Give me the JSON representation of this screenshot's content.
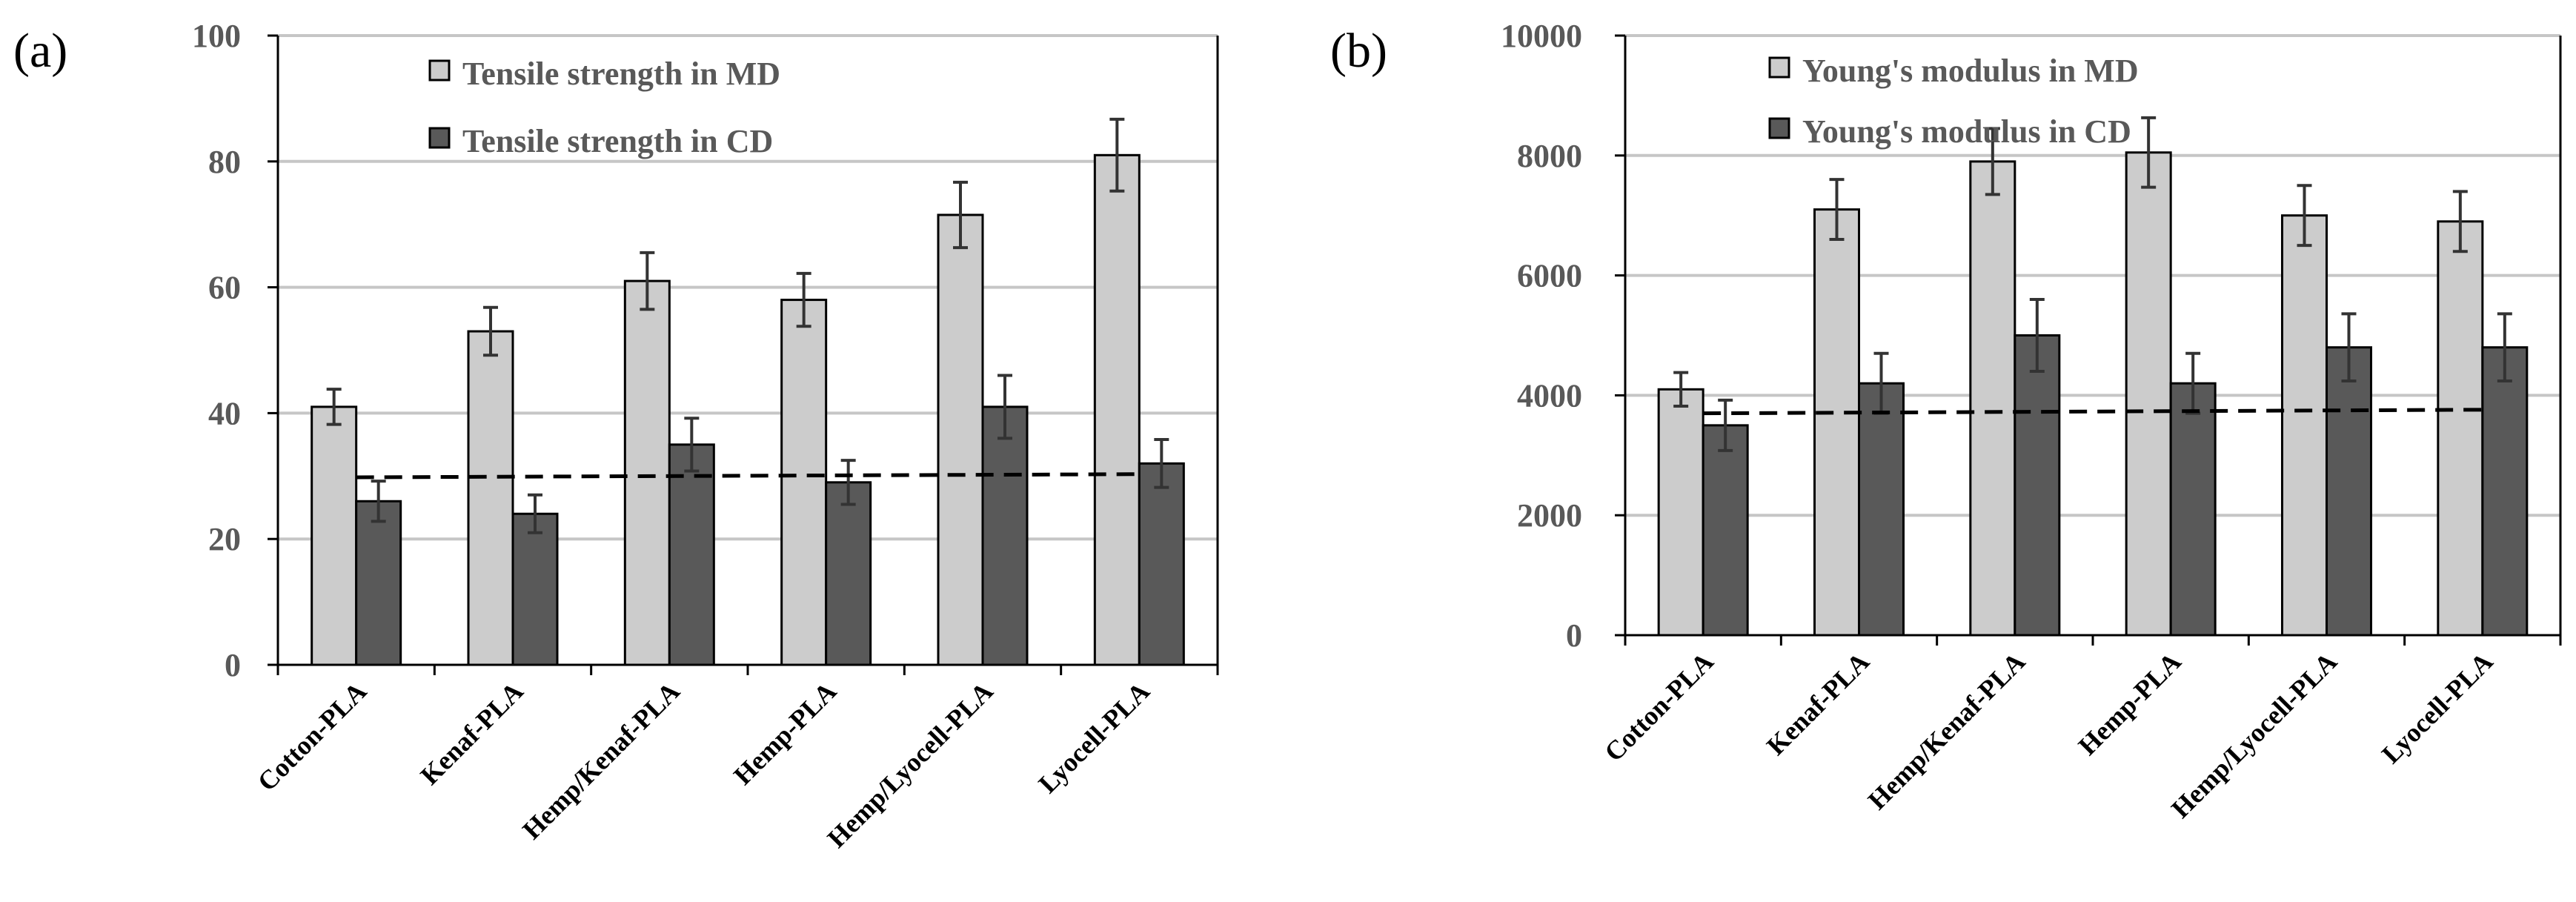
{
  "chart_data": [
    {
      "panel_label": "(a)",
      "type": "bar",
      "categories": [
        "Cotton-PLA",
        "Kenaf-PLA",
        "Hemp/Kenaf-PLA",
        "Hemp-PLA",
        "Hemp/Lyocell-PLA",
        "Lyocell-PLA"
      ],
      "series": [
        {
          "name": "Tensile strength in MD",
          "color": "#cccccc",
          "values": [
            41,
            53,
            61,
            58,
            71.5,
            81
          ],
          "errors": [
            2.8,
            3.8,
            4.5,
            4.2,
            5.2,
            5.7
          ]
        },
        {
          "name": "Tensile strength in CD",
          "color": "#595959",
          "values": [
            26,
            24,
            35,
            29,
            41,
            32
          ],
          "errors": [
            3.2,
            3.0,
            4.2,
            3.5,
            5.0,
            3.8
          ]
        }
      ],
      "reference_line": {
        "y_start": 29.8,
        "y_end": 30.3,
        "style": "dashed"
      },
      "ylim": [
        0,
        100
      ],
      "yticks": [
        0,
        20,
        40,
        60,
        80,
        100
      ],
      "gridlines": true,
      "legend_position": "top-center",
      "title": "",
      "xlabel": "",
      "ylabel": ""
    },
    {
      "panel_label": "(b)",
      "type": "bar",
      "categories": [
        "Cotton-PLA",
        "Kenaf-PLA",
        "Hemp/Kenaf-PLA",
        "Hemp-PLA",
        "Hemp/Lyocell-PLA",
        "Lyocell-PLA"
      ],
      "series": [
        {
          "name": "Young's modulus in MD",
          "color": "#cccccc",
          "values": [
            4100,
            7100,
            7900,
            8050,
            7000,
            6900
          ],
          "errors": [
            280,
            500,
            550,
            580,
            500,
            500
          ]
        },
        {
          "name": "Young's modulus in CD",
          "color": "#595959",
          "values": [
            3500,
            4200,
            5000,
            4200,
            4800,
            4800
          ],
          "errors": [
            420,
            500,
            600,
            500,
            560,
            560
          ]
        }
      ],
      "reference_line": {
        "y_start": 3700,
        "y_end": 3760,
        "style": "dashed"
      },
      "ylim": [
        0,
        10000
      ],
      "yticks": [
        0,
        2000,
        4000,
        6000,
        8000,
        10000
      ],
      "gridlines": true,
      "legend_position": "top-center",
      "title": "",
      "xlabel": "",
      "ylabel": ""
    }
  ]
}
